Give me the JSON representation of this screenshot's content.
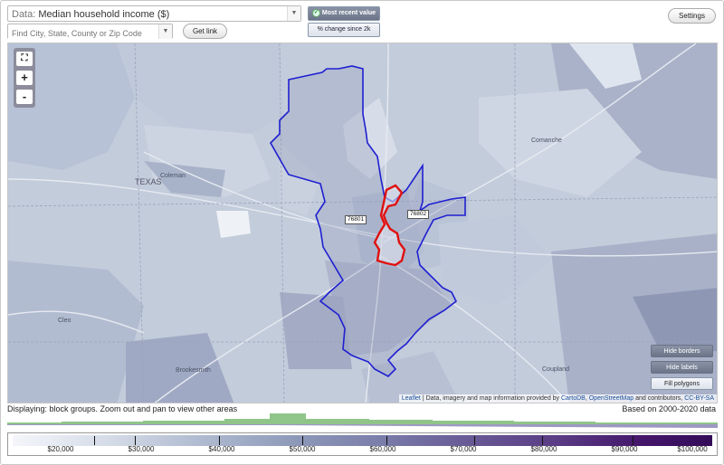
{
  "controls": {
    "data_label": "Data:",
    "data_value": "Median household income ($)",
    "search_placeholder": "Find City, State, County or Zip Code",
    "get_link": "Get link",
    "settings": "Settings",
    "mode_recent": "Most recent value",
    "mode_change": "% change since 2k"
  },
  "map": {
    "zoom_in": "+",
    "zoom_out": "-",
    "labels": {
      "texas": "TEXAS",
      "coleman": "Coleman",
      "comanche": "Comanche",
      "coupland": "Coupland",
      "cleo": "Cleo",
      "brookesmith": "Brookesmith"
    },
    "zips": [
      "76801",
      "76802"
    ],
    "buttons": {
      "hide_borders": "Hide borders",
      "hide_labels": "Hide labels",
      "fill_polygons": "Fill polygons"
    },
    "attribution": {
      "leaflet": "Leaflet",
      "text1": " | Data, imagery and map information provided by ",
      "cartodb": "CartoDB",
      "text2": ", ",
      "osm": "OpenStreetMap",
      "text3": " and contributors, ",
      "license": "CC-BY-SA"
    }
  },
  "footer": {
    "status": "Displaying: block groups. Zoom out and pan to view other areas",
    "based_on": "Based on 2000-2020 data",
    "scale_ticks": [
      "$20,000",
      "$30,000",
      "$40,000",
      "$50,000",
      "$60,000",
      "$70,000",
      "$80,000",
      "$90,000",
      "$100,000"
    ]
  },
  "colors": {
    "boundary_blue": "#1f1fd1",
    "boundary_red": "#e01010",
    "histogram_green": "#7dbb75",
    "histogram_purple": "#8c86b8"
  }
}
